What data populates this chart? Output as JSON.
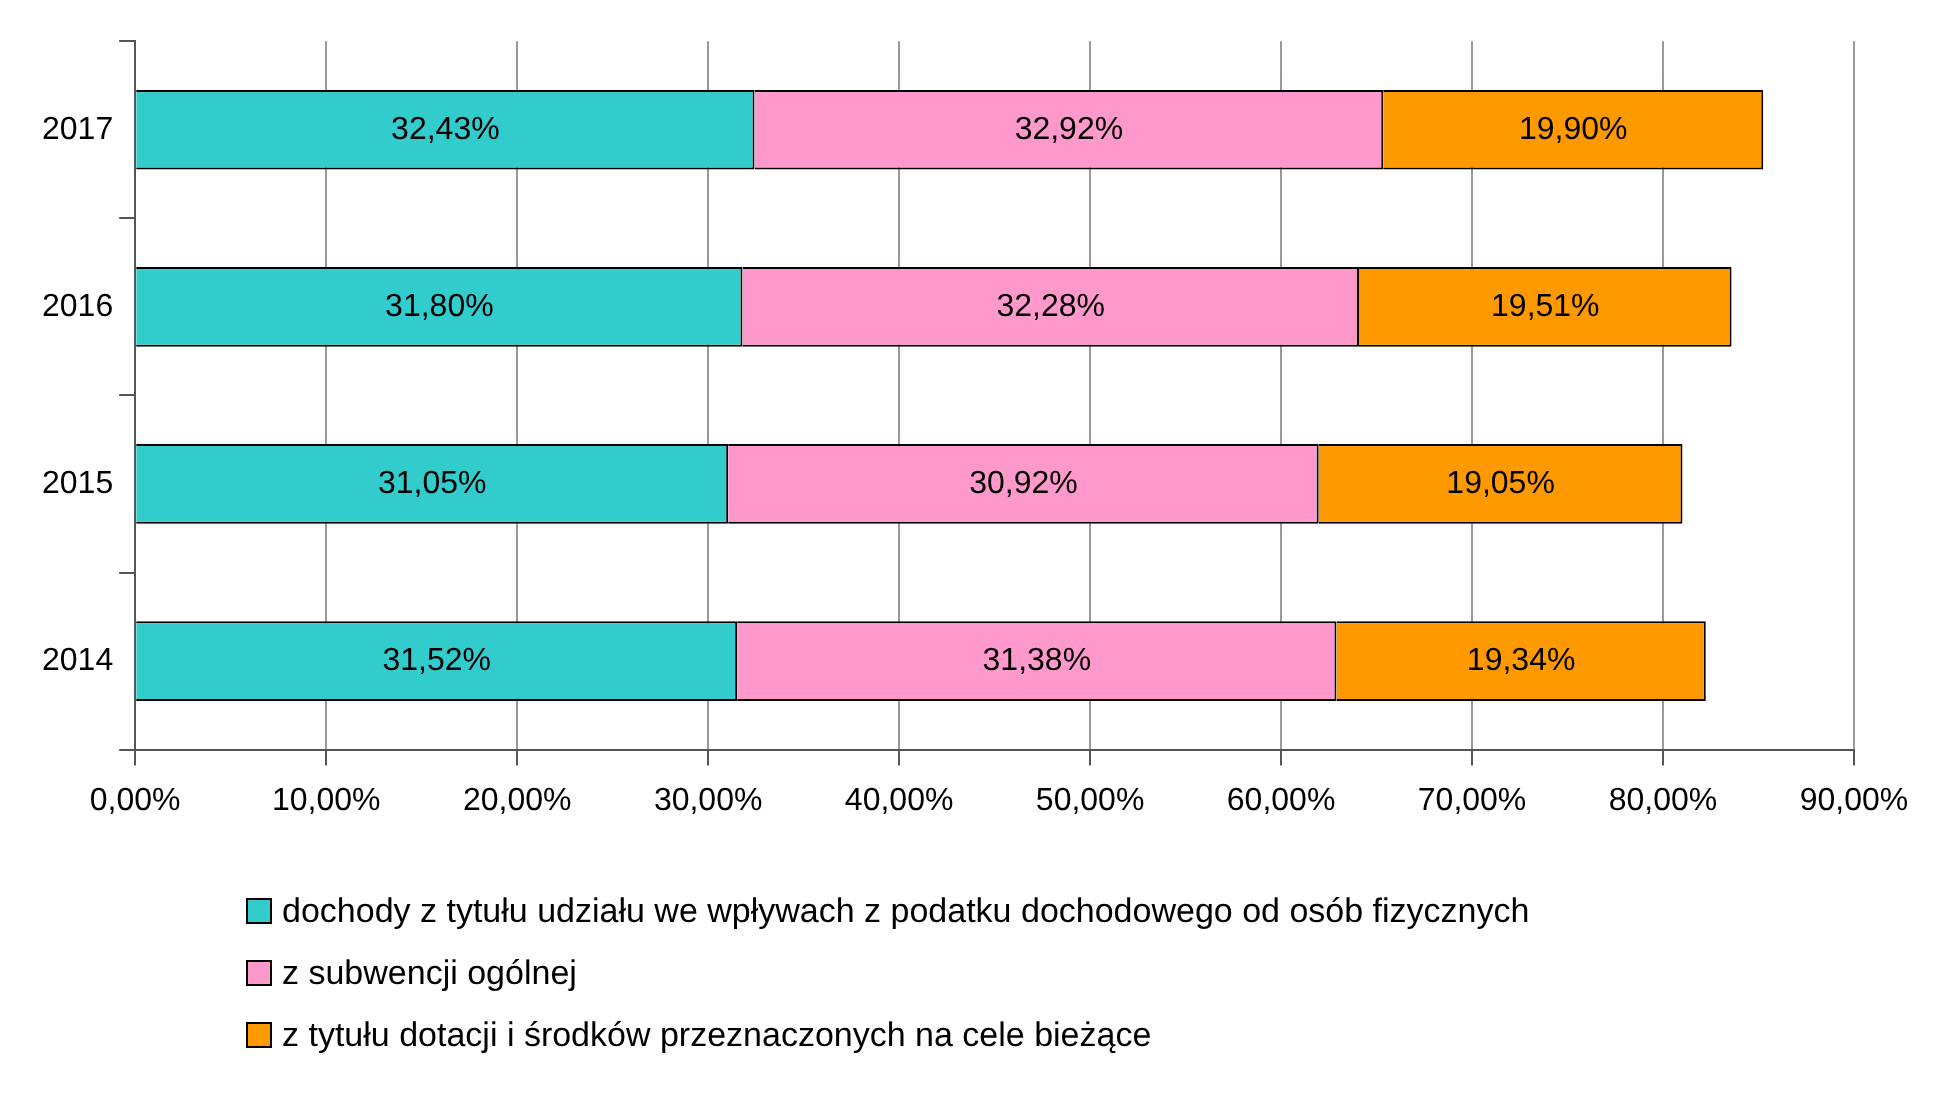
{
  "chart_data": {
    "type": "bar",
    "orientation": "horizontal",
    "stacked": true,
    "categories": [
      "2017",
      "2016",
      "2015",
      "2014"
    ],
    "series": [
      {
        "name": "dochody z tytułu udziału we wpływach z podatku dochodowego od osób fizycznych",
        "color": "#33cccc",
        "values": [
          32.43,
          31.8,
          31.05,
          31.52
        ],
        "value_labels": [
          "32,43%",
          "31,80%",
          "31,05%",
          "31,52%"
        ]
      },
      {
        "name": "z subwencji ogólnej",
        "color": "#ff99cc",
        "values": [
          32.92,
          32.28,
          30.92,
          31.38
        ],
        "value_labels": [
          "32,92%",
          "32,28%",
          "30,92%",
          "31,38%"
        ]
      },
      {
        "name": "z tytułu dotacji i środków przeznaczonych na cele bieżące",
        "color": "#ff9900",
        "values": [
          19.9,
          19.51,
          19.05,
          19.34
        ],
        "value_labels": [
          "19,90%",
          "19,51%",
          "19,05%",
          "19,34%"
        ]
      }
    ],
    "xlim": [
      0,
      90
    ],
    "xticks": [
      {
        "value": 0,
        "label": "0,00%"
      },
      {
        "value": 10,
        "label": "10,00%"
      },
      {
        "value": 20,
        "label": "20,00%"
      },
      {
        "value": 30,
        "label": "30,00%"
      },
      {
        "value": 40,
        "label": "40,00%"
      },
      {
        "value": 50,
        "label": "50,00%"
      },
      {
        "value": 60,
        "label": "60,00%"
      },
      {
        "value": 70,
        "label": "70,00%"
      },
      {
        "value": 80,
        "label": "80,00%"
      },
      {
        "value": 90,
        "label": "90,00%"
      }
    ],
    "grid": "x",
    "legend": "bottom"
  }
}
